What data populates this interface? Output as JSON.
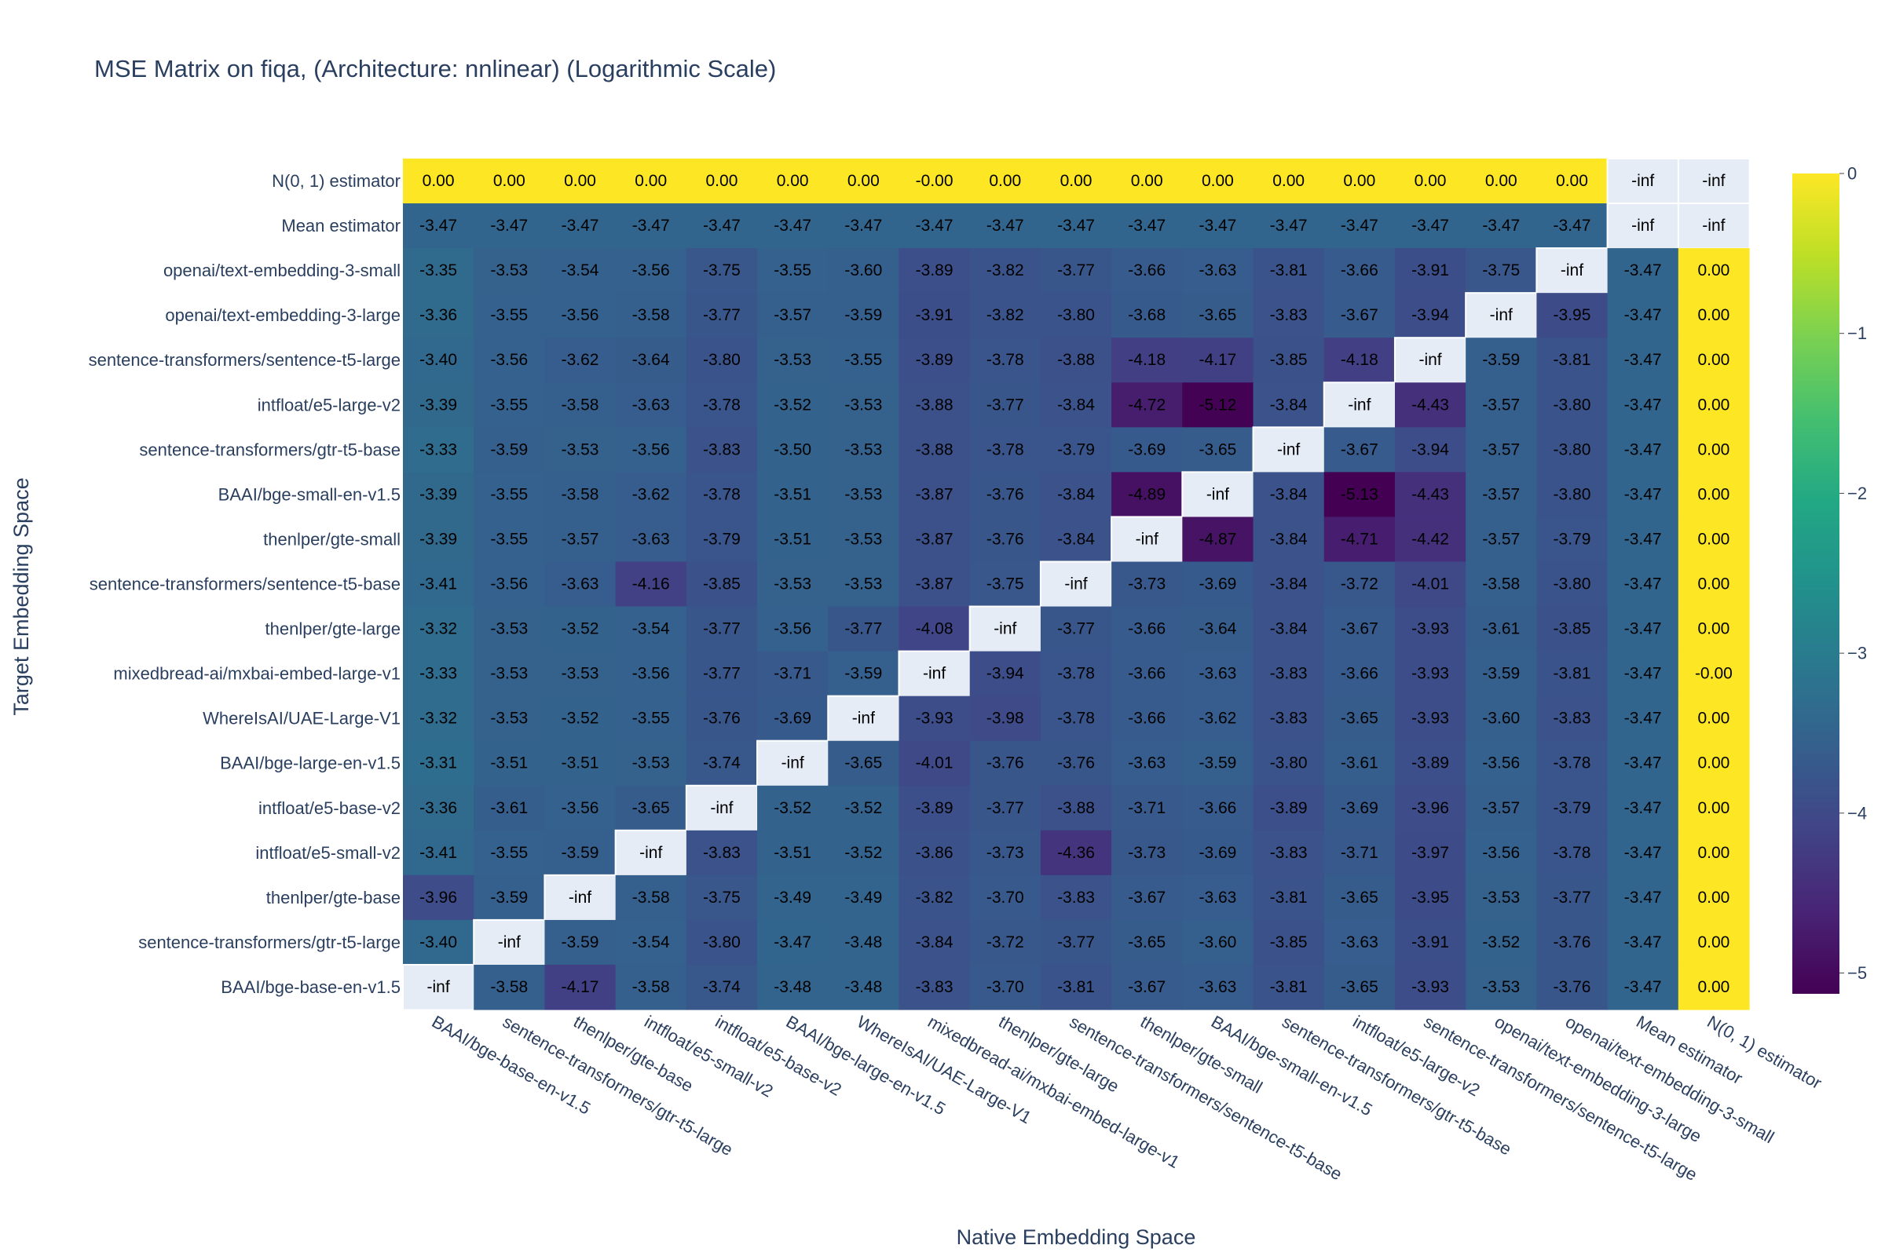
{
  "chart_data": {
    "type": "heatmap",
    "title": "MSE Matrix on fiqa, (Architecture: nnlinear) (Logarithmic Scale)",
    "xlabel": "Native Embedding Space",
    "ylabel": "Target Embedding Space",
    "x": [
      "BAAI/bge-base-en-v1.5",
      "sentence-transformers/gtr-t5-large",
      "thenlper/gte-base",
      "intfloat/e5-small-v2",
      "intfloat/e5-base-v2",
      "BAAI/bge-large-en-v1.5",
      "WhereIsAI/UAE-Large-V1",
      "mixedbread-ai/mxbai-embed-large-v1",
      "thenlper/gte-large",
      "sentence-transformers/sentence-t5-base",
      "thenlper/gte-small",
      "BAAI/bge-small-en-v1.5",
      "sentence-transformers/gtr-t5-base",
      "intfloat/e5-large-v2",
      "sentence-transformers/sentence-t5-large",
      "openai/text-embedding-3-large",
      "openai/text-embedding-3-small",
      "Mean estimator",
      "N(0, 1) estimator"
    ],
    "y": [
      "N(0, 1) estimator",
      "Mean estimator",
      "openai/text-embedding-3-small",
      "openai/text-embedding-3-large",
      "sentence-transformers/sentence-t5-large",
      "intfloat/e5-large-v2",
      "sentence-transformers/gtr-t5-base",
      "BAAI/bge-small-en-v1.5",
      "thenlper/gte-small",
      "sentence-transformers/sentence-t5-base",
      "thenlper/gte-large",
      "mixedbread-ai/mxbai-embed-large-v1",
      "WhereIsAI/UAE-Large-V1",
      "BAAI/bge-large-en-v1.5",
      "intfloat/e5-base-v2",
      "intfloat/e5-small-v2",
      "thenlper/gte-base",
      "sentence-transformers/gtr-t5-large",
      "BAAI/bge-base-en-v1.5"
    ],
    "z": [
      [
        "0.00",
        "0.00",
        "0.00",
        "0.00",
        "0.00",
        "0.00",
        "0.00",
        "-0.00",
        "0.00",
        "0.00",
        "0.00",
        "0.00",
        "0.00",
        "0.00",
        "0.00",
        "0.00",
        "0.00",
        "-inf",
        "-inf"
      ],
      [
        "-3.47",
        "-3.47",
        "-3.47",
        "-3.47",
        "-3.47",
        "-3.47",
        "-3.47",
        "-3.47",
        "-3.47",
        "-3.47",
        "-3.47",
        "-3.47",
        "-3.47",
        "-3.47",
        "-3.47",
        "-3.47",
        "-3.47",
        "-inf",
        "-inf"
      ],
      [
        "-3.35",
        "-3.53",
        "-3.54",
        "-3.56",
        "-3.75",
        "-3.55",
        "-3.60",
        "-3.89",
        "-3.82",
        "-3.77",
        "-3.66",
        "-3.63",
        "-3.81",
        "-3.66",
        "-3.91",
        "-3.75",
        "-inf",
        "-3.47",
        "0.00"
      ],
      [
        "-3.36",
        "-3.55",
        "-3.56",
        "-3.58",
        "-3.77",
        "-3.57",
        "-3.59",
        "-3.91",
        "-3.82",
        "-3.80",
        "-3.68",
        "-3.65",
        "-3.83",
        "-3.67",
        "-3.94",
        "-inf",
        "-3.95",
        "-3.47",
        "0.00"
      ],
      [
        "-3.40",
        "-3.56",
        "-3.62",
        "-3.64",
        "-3.80",
        "-3.53",
        "-3.55",
        "-3.89",
        "-3.78",
        "-3.88",
        "-4.18",
        "-4.17",
        "-3.85",
        "-4.18",
        "-inf",
        "-3.59",
        "-3.81",
        "-3.47",
        "0.00"
      ],
      [
        "-3.39",
        "-3.55",
        "-3.58",
        "-3.63",
        "-3.78",
        "-3.52",
        "-3.53",
        "-3.88",
        "-3.77",
        "-3.84",
        "-4.72",
        "-5.12",
        "-3.84",
        "-inf",
        "-4.43",
        "-3.57",
        "-3.80",
        "-3.47",
        "0.00"
      ],
      [
        "-3.33",
        "-3.59",
        "-3.53",
        "-3.56",
        "-3.83",
        "-3.50",
        "-3.53",
        "-3.88",
        "-3.78",
        "-3.79",
        "-3.69",
        "-3.65",
        "-inf",
        "-3.67",
        "-3.94",
        "-3.57",
        "-3.80",
        "-3.47",
        "0.00"
      ],
      [
        "-3.39",
        "-3.55",
        "-3.58",
        "-3.62",
        "-3.78",
        "-3.51",
        "-3.53",
        "-3.87",
        "-3.76",
        "-3.84",
        "-4.89",
        "-inf",
        "-3.84",
        "-5.13",
        "-4.43",
        "-3.57",
        "-3.80",
        "-3.47",
        "0.00"
      ],
      [
        "-3.39",
        "-3.55",
        "-3.57",
        "-3.63",
        "-3.79",
        "-3.51",
        "-3.53",
        "-3.87",
        "-3.76",
        "-3.84",
        "-inf",
        "-4.87",
        "-3.84",
        "-4.71",
        "-4.42",
        "-3.57",
        "-3.79",
        "-3.47",
        "0.00"
      ],
      [
        "-3.41",
        "-3.56",
        "-3.63",
        "-4.16",
        "-3.85",
        "-3.53",
        "-3.53",
        "-3.87",
        "-3.75",
        "-inf",
        "-3.73",
        "-3.69",
        "-3.84",
        "-3.72",
        "-4.01",
        "-3.58",
        "-3.80",
        "-3.47",
        "0.00"
      ],
      [
        "-3.32",
        "-3.53",
        "-3.52",
        "-3.54",
        "-3.77",
        "-3.56",
        "-3.77",
        "-4.08",
        "-inf",
        "-3.77",
        "-3.66",
        "-3.64",
        "-3.84",
        "-3.67",
        "-3.93",
        "-3.61",
        "-3.85",
        "-3.47",
        "0.00"
      ],
      [
        "-3.33",
        "-3.53",
        "-3.53",
        "-3.56",
        "-3.77",
        "-3.71",
        "-3.59",
        "-inf",
        "-3.94",
        "-3.78",
        "-3.66",
        "-3.63",
        "-3.83",
        "-3.66",
        "-3.93",
        "-3.59",
        "-3.81",
        "-3.47",
        "-0.00"
      ],
      [
        "-3.32",
        "-3.53",
        "-3.52",
        "-3.55",
        "-3.76",
        "-3.69",
        "-inf",
        "-3.93",
        "-3.98",
        "-3.78",
        "-3.66",
        "-3.62",
        "-3.83",
        "-3.65",
        "-3.93",
        "-3.60",
        "-3.83",
        "-3.47",
        "0.00"
      ],
      [
        "-3.31",
        "-3.51",
        "-3.51",
        "-3.53",
        "-3.74",
        "-inf",
        "-3.65",
        "-4.01",
        "-3.76",
        "-3.76",
        "-3.63",
        "-3.59",
        "-3.80",
        "-3.61",
        "-3.89",
        "-3.56",
        "-3.78",
        "-3.47",
        "0.00"
      ],
      [
        "-3.36",
        "-3.61",
        "-3.56",
        "-3.65",
        "-inf",
        "-3.52",
        "-3.52",
        "-3.89",
        "-3.77",
        "-3.88",
        "-3.71",
        "-3.66",
        "-3.89",
        "-3.69",
        "-3.96",
        "-3.57",
        "-3.79",
        "-3.47",
        "0.00"
      ],
      [
        "-3.41",
        "-3.55",
        "-3.59",
        "-inf",
        "-3.83",
        "-3.51",
        "-3.52",
        "-3.86",
        "-3.73",
        "-4.36",
        "-3.73",
        "-3.69",
        "-3.83",
        "-3.71",
        "-3.97",
        "-3.56",
        "-3.78",
        "-3.47",
        "0.00"
      ],
      [
        "-3.96",
        "-3.59",
        "-inf",
        "-3.58",
        "-3.75",
        "-3.49",
        "-3.49",
        "-3.82",
        "-3.70",
        "-3.83",
        "-3.67",
        "-3.63",
        "-3.81",
        "-3.65",
        "-3.95",
        "-3.53",
        "-3.77",
        "-3.47",
        "0.00"
      ],
      [
        "-3.40",
        "-inf",
        "-3.59",
        "-3.54",
        "-3.80",
        "-3.47",
        "-3.48",
        "-3.84",
        "-3.72",
        "-3.77",
        "-3.65",
        "-3.60",
        "-3.85",
        "-3.63",
        "-3.91",
        "-3.52",
        "-3.76",
        "-3.47",
        "0.00"
      ],
      [
        "-inf",
        "-3.58",
        "-4.17",
        "-3.58",
        "-3.74",
        "-3.48",
        "-3.48",
        "-3.83",
        "-3.70",
        "-3.81",
        "-3.67",
        "-3.63",
        "-3.81",
        "-3.65",
        "-3.93",
        "-3.53",
        "-3.76",
        "-3.47",
        "0.00"
      ]
    ],
    "zmin": -5.13,
    "zmax": 0,
    "colorscale": "viridis",
    "missing_color": "#E5ECF6",
    "colorbar_ticks": [
      "0",
      "−1",
      "−2",
      "−3",
      "−4",
      "−5"
    ],
    "colorbar_tick_values": [
      0,
      -1,
      -2,
      -3,
      -4,
      -5
    ]
  }
}
